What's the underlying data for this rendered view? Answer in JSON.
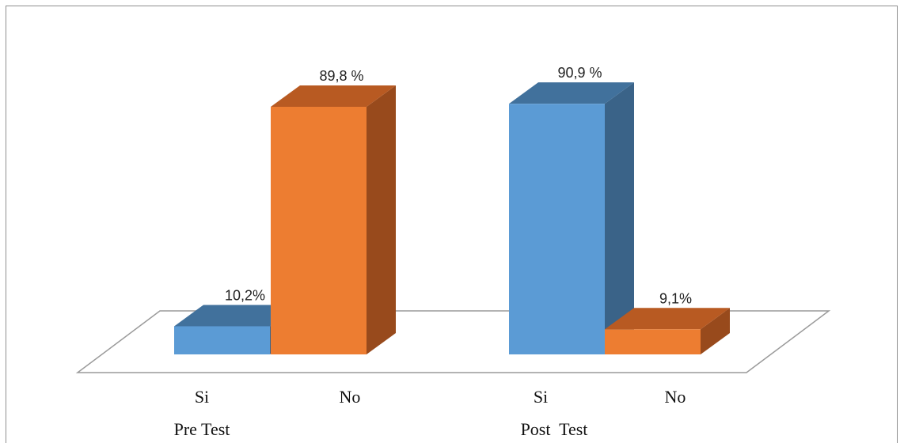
{
  "chart_data": {
    "type": "bar",
    "style": "3d-clustered-column",
    "groups": [
      {
        "name": "Pre Test",
        "bars": [
          {
            "category": "Si",
            "value": 10.2,
            "label": "10,2%",
            "color": "blue"
          },
          {
            "category": "No",
            "value": 89.8,
            "label": "89,8 %",
            "color": "orange"
          }
        ]
      },
      {
        "name": "Post  Test",
        "bars": [
          {
            "category": "Si",
            "value": 90.9,
            "label": "90,9 %",
            "color": "blue"
          },
          {
            "category": "No",
            "value": 9.1,
            "label": "9,1%",
            "color": "orange"
          }
        ]
      }
    ],
    "ylim": [
      0,
      100
    ],
    "grid": false,
    "legend": "none",
    "colors": {
      "blue": {
        "front": "#5b9bd5",
        "top": "#41719c",
        "side": "#3a6388"
      },
      "orange": {
        "front": "#ed7d31",
        "top": "#b85a22",
        "side": "#984a1c"
      },
      "floor_stroke": "#9a9a9a"
    }
  }
}
